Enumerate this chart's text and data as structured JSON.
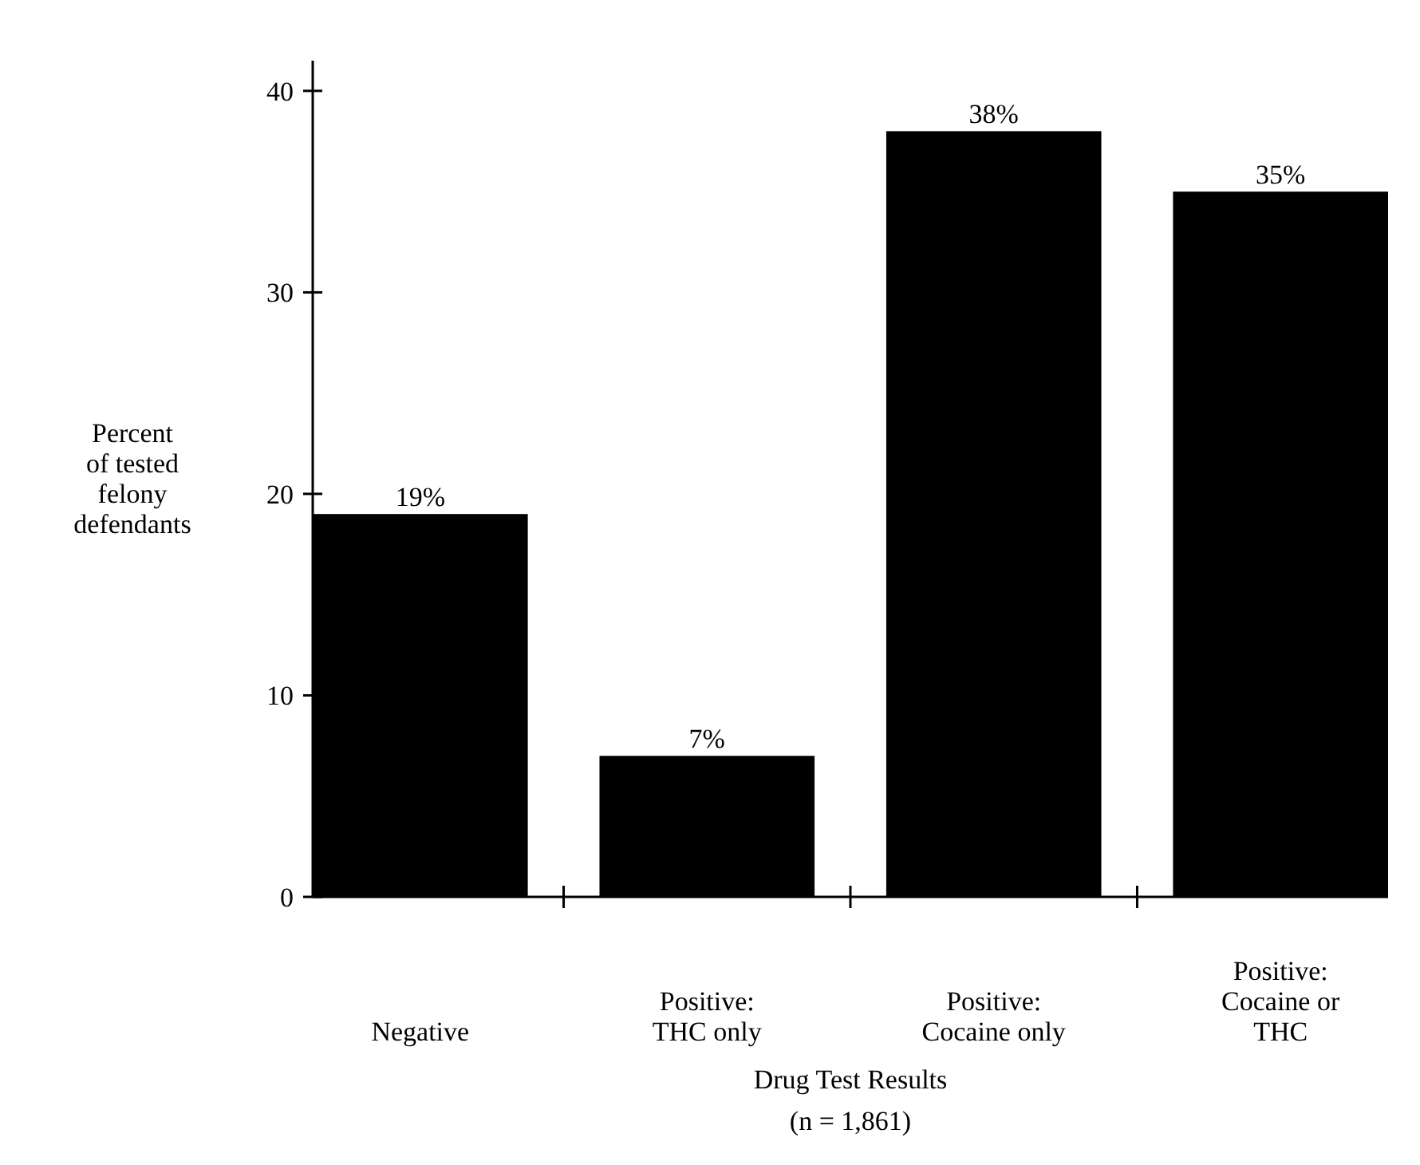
{
  "chart_data": {
    "type": "bar",
    "xlabel": "Drug Test Results",
    "ylabel": "Percent\nof tested\nfelony\ndefendants",
    "categories": [
      "Negative",
      "Positive:\nTHC only",
      "Positive:\nCocaine only",
      "Positive:\nCocaine or\nTHC"
    ],
    "values": [
      19,
      7,
      38,
      35
    ],
    "value_labels": [
      "19%",
      "7%",
      "38%",
      "35%"
    ],
    "color": "#000000",
    "ylim": [
      0,
      41.5
    ],
    "yticks": [
      0,
      10,
      20,
      30,
      40
    ],
    "annotations": [
      "(n = 1,861)"
    ]
  }
}
